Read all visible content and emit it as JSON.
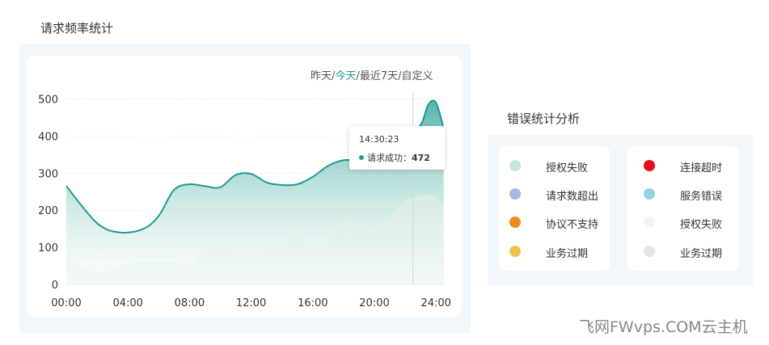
{
  "request_section": {
    "title": "请求频率统计"
  },
  "range_selector": {
    "yesterday": "昨天",
    "today": "今天",
    "last7": "最近7天",
    "custom": "自定义",
    "sep": "/"
  },
  "tooltip": {
    "time": "14:30:23",
    "label": "请求成功：",
    "value": "472"
  },
  "error_section": {
    "title": "错误统计分析",
    "left": [
      {
        "label": "授权失败",
        "color": "#c5e7d6"
      },
      {
        "label": "请求数超出",
        "color": "#a9b9df"
      },
      {
        "label": "协议不支持",
        "color": "#ec8a1f"
      },
      {
        "label": "业务过期",
        "color": "#efc44a"
      }
    ],
    "right": [
      {
        "label": "连接超时",
        "color": "#e3101a"
      },
      {
        "label": "服务错误",
        "color": "#95d2de"
      },
      {
        "label": "授权失败",
        "color": "#eef4f6"
      },
      {
        "label": "业务过期",
        "color": "#e0e7ec"
      }
    ]
  },
  "watermark": "飞网FWvps.COM云主机",
  "chart_data": {
    "type": "area",
    "xlabel": "",
    "ylabel": "",
    "x_ticks": [
      "00:00",
      "04:00",
      "08:00",
      "12:00",
      "16:00",
      "20:00",
      "24:00"
    ],
    "y_ticks": [
      0,
      100,
      200,
      300,
      400,
      500
    ],
    "xlim": [
      0,
      24.5
    ],
    "ylim": [
      0,
      500
    ],
    "grid": true,
    "series": [
      {
        "x": [
          0,
          2,
          3.5,
          5,
          6,
          7,
          8,
          9,
          10,
          11,
          12,
          13,
          14,
          15,
          16,
          17,
          18,
          19,
          20,
          21,
          22,
          23,
          23.5,
          24,
          24.5
        ],
        "y": [
          265,
          165,
          140,
          150,
          185,
          255,
          270,
          265,
          262,
          295,
          298,
          275,
          268,
          270,
          290,
          320,
          335,
          335,
          350,
          380,
          400,
          430,
          485,
          490,
          420
        ]
      },
      {
        "x": [
          0,
          2,
          4,
          6,
          8,
          9,
          10,
          12,
          13,
          14,
          15,
          16,
          17,
          18,
          19,
          20,
          21,
          22,
          23,
          24,
          24.5
        ],
        "y": [
          70,
          35,
          55,
          62,
          55,
          85,
          95,
          80,
          90,
          110,
          125,
          100,
          125,
          178,
          170,
          155,
          185,
          225,
          240,
          235,
          210
        ]
      }
    ],
    "crosshair_x": 22.5
  }
}
